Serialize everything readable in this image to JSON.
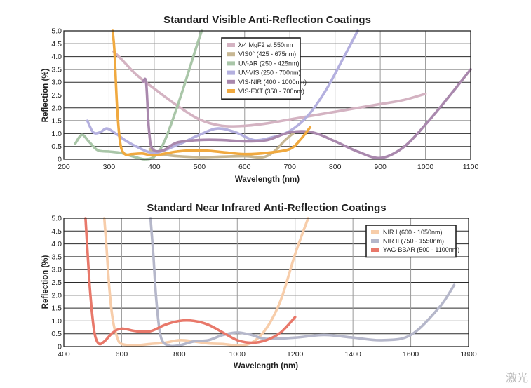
{
  "chart_data": [
    {
      "type": "line",
      "title": "Standard Visible Anti-Reflection Coatings",
      "xlabel": "Wavelength (nm)",
      "ylabel": "Reflection (%)",
      "xlim": [
        200,
        1100
      ],
      "ylim": [
        0,
        5.0
      ],
      "xticks": [
        "200",
        "300",
        "400",
        "500",
        "600",
        "700",
        "800",
        "900",
        "1000",
        "1100"
      ],
      "yticks": [
        "0",
        "0.5",
        "1.0",
        "1.5",
        "2.0",
        "2.5",
        "3.0",
        "3.5",
        "4.0",
        "4.5",
        "5.0"
      ],
      "grid": true,
      "legend_position": "top-center",
      "series": [
        {
          "name": "λ/4 MgF2 at 550nm",
          "color": "#d4b3c2",
          "points": [
            [
              310,
              4.2
            ],
            [
              330,
              3.85
            ],
            [
              360,
              3.3
            ],
            [
              400,
              2.75
            ],
            [
              450,
              2.1
            ],
            [
              500,
              1.55
            ],
            [
              550,
              1.3
            ],
            [
              600,
              1.3
            ],
            [
              650,
              1.4
            ],
            [
              700,
              1.55
            ],
            [
              750,
              1.7
            ],
            [
              800,
              1.85
            ],
            [
              850,
              2.0
            ],
            [
              900,
              2.15
            ],
            [
              950,
              2.3
            ],
            [
              1000,
              2.55
            ]
          ]
        },
        {
          "name": "VIS0° (425 - 675nm)",
          "color": "#c7b793",
          "points": [
            [
              390,
              0.4
            ],
            [
              400,
              0.2
            ],
            [
              420,
              0.18
            ],
            [
              450,
              0.12
            ],
            [
              500,
              0.08
            ],
            [
              550,
              0.1
            ],
            [
              600,
              0.12
            ],
            [
              640,
              0.08
            ],
            [
              665,
              0.3
            ],
            [
              690,
              0.75
            ],
            [
              710,
              1.05
            ]
          ]
        },
        {
          "name": "UV-AR (250 - 425nm)",
          "color": "#a9c6a8",
          "points": [
            [
              225,
              0.6
            ],
            [
              240,
              0.95
            ],
            [
              255,
              0.7
            ],
            [
              275,
              0.35
            ],
            [
              300,
              0.3
            ],
            [
              325,
              0.25
            ],
            [
              345,
              0.15
            ],
            [
              365,
              0.05
            ],
            [
              380,
              0.0
            ],
            [
              400,
              0.1
            ],
            [
              420,
              0.6
            ],
            [
              440,
              1.5
            ],
            [
              465,
              2.8
            ],
            [
              490,
              4.2
            ],
            [
              505,
              5.0
            ]
          ]
        },
        {
          "name": "UV-VIS (250 - 700nm)",
          "color": "#b4b0df",
          "points": [
            [
              252,
              1.5
            ],
            [
              265,
              1.05
            ],
            [
              280,
              1.05
            ],
            [
              295,
              1.2
            ],
            [
              315,
              1.0
            ],
            [
              335,
              0.75
            ],
            [
              360,
              0.5
            ],
            [
              400,
              0.25
            ],
            [
              450,
              0.55
            ],
            [
              500,
              0.95
            ],
            [
              540,
              1.2
            ],
            [
              580,
              1.05
            ],
            [
              620,
              0.75
            ],
            [
              660,
              0.85
            ],
            [
              700,
              1.1
            ],
            [
              740,
              1.7
            ],
            [
              780,
              2.7
            ],
            [
              820,
              4.0
            ],
            [
              850,
              5.0
            ]
          ]
        },
        {
          "name": "VIS-NIR (400 - 1000nm)",
          "color": "#a988ad",
          "points": [
            [
              375,
              3.0
            ],
            [
              382,
              3.0
            ],
            [
              388,
              1.2
            ],
            [
              396,
              0.4
            ],
            [
              420,
              0.35
            ],
            [
              450,
              0.65
            ],
            [
              500,
              0.75
            ],
            [
              550,
              0.75
            ],
            [
              600,
              0.7
            ],
            [
              650,
              0.75
            ],
            [
              700,
              1.05
            ],
            [
              750,
              1.05
            ],
            [
              800,
              0.7
            ],
            [
              850,
              0.3
            ],
            [
              900,
              0.05
            ],
            [
              950,
              0.45
            ],
            [
              1000,
              1.35
            ],
            [
              1050,
              2.4
            ],
            [
              1100,
              3.5
            ]
          ]
        },
        {
          "name": "VIS-EXT (350 - 700nm)",
          "color": "#f0a93f",
          "points": [
            [
              308,
              5.0
            ],
            [
              312,
              4.2
            ],
            [
              318,
              2.0
            ],
            [
              325,
              0.6
            ],
            [
              335,
              0.2
            ],
            [
              350,
              0.2
            ],
            [
              375,
              0.22
            ],
            [
              400,
              0.15
            ],
            [
              450,
              0.3
            ],
            [
              500,
              0.35
            ],
            [
              550,
              0.28
            ],
            [
              600,
              0.2
            ],
            [
              650,
              0.25
            ],
            [
              700,
              0.4
            ],
            [
              725,
              0.8
            ],
            [
              745,
              1.25
            ]
          ]
        }
      ]
    },
    {
      "type": "line",
      "title": "Standard Near Infrared Anti-Reflection Coatings",
      "xlabel": "Wavelength (nm)",
      "ylabel": "Reflection (%)",
      "xlim": [
        400,
        1800
      ],
      "ylim": [
        0,
        5.0
      ],
      "xticks": [
        "400",
        "600",
        "800",
        "1000",
        "1200",
        "1400",
        "1600",
        "1800"
      ],
      "yticks": [
        "0",
        "0.5",
        "1.0",
        "1.5",
        "2.0",
        "2.5",
        "3.0",
        "3.5",
        "4.0",
        "4.5",
        "5.0"
      ],
      "grid": true,
      "legend_position": "top-right",
      "series": [
        {
          "name": "NIR I (600 - 1050nm)",
          "color": "#f7cdaa",
          "points": [
            [
              540,
              5.0
            ],
            [
              548,
              3.8
            ],
            [
              558,
              2.2
            ],
            [
              570,
              1.0
            ],
            [
              585,
              0.35
            ],
            [
              600,
              0.1
            ],
            [
              650,
              0.05
            ],
            [
              700,
              0.1
            ],
            [
              750,
              0.15
            ],
            [
              800,
              0.25
            ],
            [
              850,
              0.2
            ],
            [
              900,
              0.12
            ],
            [
              950,
              0.1
            ],
            [
              1000,
              0.05
            ],
            [
              1050,
              0.15
            ],
            [
              1100,
              0.7
            ],
            [
              1150,
              1.8
            ],
            [
              1200,
              3.6
            ],
            [
              1245,
              5.0
            ]
          ]
        },
        {
          "name": "NIR II (750 - 1550nm)",
          "color": "#b5b7ca",
          "points": [
            [
              700,
              5.0
            ],
            [
              710,
              3.5
            ],
            [
              720,
              1.8
            ],
            [
              735,
              0.4
            ],
            [
              760,
              0.05
            ],
            [
              800,
              0.05
            ],
            [
              850,
              0.2
            ],
            [
              900,
              0.25
            ],
            [
              950,
              0.45
            ],
            [
              1000,
              0.55
            ],
            [
              1050,
              0.45
            ],
            [
              1100,
              0.3
            ],
            [
              1200,
              0.35
            ],
            [
              1300,
              0.45
            ],
            [
              1400,
              0.35
            ],
            [
              1500,
              0.25
            ],
            [
              1600,
              0.45
            ],
            [
              1700,
              1.55
            ],
            [
              1750,
              2.4
            ]
          ]
        },
        {
          "name": "YAG-BBAR (500 - 1100nm)",
          "color": "#e8786a",
          "points": [
            [
              475,
              5.0
            ],
            [
              483,
              3.5
            ],
            [
              492,
              2.0
            ],
            [
              505,
              0.6
            ],
            [
              520,
              0.12
            ],
            [
              540,
              0.2
            ],
            [
              570,
              0.55
            ],
            [
              600,
              0.7
            ],
            [
              650,
              0.6
            ],
            [
              700,
              0.6
            ],
            [
              750,
              0.85
            ],
            [
              800,
              1.0
            ],
            [
              850,
              1.0
            ],
            [
              900,
              0.85
            ],
            [
              950,
              0.55
            ],
            [
              1000,
              0.25
            ],
            [
              1050,
              0.15
            ],
            [
              1100,
              0.25
            ],
            [
              1150,
              0.55
            ],
            [
              1200,
              1.15
            ]
          ]
        }
      ]
    }
  ],
  "watermark": "激光"
}
